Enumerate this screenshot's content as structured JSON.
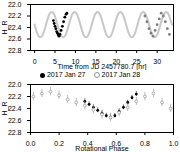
{
  "chart_data": [
    {
      "type": "scatter",
      "xlabel": "Time from JD 2457780.7 [hr]",
      "ylabel": "H_R",
      "xlim": [
        -1,
        34
      ],
      "ylim": [
        22.8,
        22.0
      ],
      "xticks": [
        0,
        5,
        10,
        15,
        20,
        25,
        30
      ],
      "yticks": [
        {
          "value": 22.0,
          "label": "22.0"
        },
        22.2,
        22.4,
        22.6,
        {
          "value": 22.8,
          "label": "22.8"
        }
      ],
      "series": [
        {
          "type": "line",
          "color": "#c8c8c8",
          "x": [
            0,
            0.7,
            1.4,
            2.1,
            2.8,
            3.5,
            4.2,
            4.9,
            5.6,
            6.3,
            7.0,
            7.7,
            8.4,
            9.1,
            9.8,
            10.5,
            11.2,
            11.9,
            12.6,
            13.3,
            14.0,
            14.7,
            15.4,
            16.1,
            16.8,
            17.5,
            18.2,
            18.9,
            19.6,
            20.3,
            21.0,
            21.7,
            22.4,
            23.1,
            23.8,
            24.5,
            25.2,
            25.9,
            26.6,
            27.3,
            28.0,
            28.7,
            29.4,
            30.1,
            30.8,
            31.5,
            32.2,
            32.9,
            33.6
          ],
          "values": [
            22.35,
            22.51,
            22.57,
            22.51,
            22.35,
            22.19,
            22.13,
            22.19,
            22.35,
            22.51,
            22.57,
            22.51,
            22.35,
            22.19,
            22.13,
            22.19,
            22.35,
            22.51,
            22.57,
            22.51,
            22.35,
            22.19,
            22.13,
            22.19,
            22.35,
            22.51,
            22.57,
            22.51,
            22.35,
            22.19,
            22.13,
            22.19,
            22.35,
            22.51,
            22.57,
            22.51,
            22.35,
            22.19,
            22.13,
            22.19,
            22.35,
            22.51,
            22.57,
            22.51,
            22.35,
            22.19,
            22.13,
            22.19,
            22.35
          ]
        },
        {
          "type": "scatter",
          "color": "#000000",
          "marker": "filled",
          "x": [
            4.6,
            4.8,
            5.0,
            5.2,
            5.4,
            5.6,
            5.8,
            6.0,
            6.2,
            6.5,
            6.8,
            7.1,
            7.4,
            7.7,
            7.9
          ],
          "values": [
            22.28,
            22.33,
            22.38,
            22.42,
            22.47,
            22.5,
            22.53,
            22.55,
            22.52,
            22.45,
            22.38,
            22.3,
            22.22,
            22.17,
            22.15
          ]
        },
        {
          "type": "scatter",
          "color": "#808080",
          "marker": "filled",
          "x": [
            27.0,
            27.5,
            28.0,
            28.5,
            29.0,
            29.5,
            30.0,
            30.5,
            31.0,
            31.5,
            32.0,
            32.5,
            33.0
          ],
          "values": [
            22.2,
            22.3,
            22.42,
            22.5,
            22.55,
            22.45,
            22.35,
            22.25,
            22.15,
            22.2,
            22.3,
            22.42,
            22.52
          ]
        }
      ]
    },
    {
      "type": "scatter",
      "xlabel": "Rotational Phase",
      "ylabel": "H_R",
      "xlim": [
        0,
        1
      ],
      "ylim": [
        22.8,
        22.0
      ],
      "xticks": [
        {
          "value": 0,
          "label": "0.0"
        },
        0.2,
        0.4,
        0.6,
        0.8,
        {
          "value": 1,
          "label": "1.0"
        }
      ],
      "yticks": [
        {
          "value": 22.0,
          "label": "22.0"
        },
        22.2,
        22.4,
        22.6,
        {
          "value": 22.8,
          "label": "22.8"
        }
      ],
      "legend": "top",
      "series": [
        {
          "name": "2017 Jan 27",
          "color": "#000000",
          "marker": "filled",
          "x": [
            0.38,
            0.41,
            0.44,
            0.47,
            0.5,
            0.53,
            0.56,
            0.59,
            0.62,
            0.65,
            0.68,
            0.71,
            0.74
          ],
          "values": [
            22.28,
            22.33,
            22.38,
            22.43,
            22.48,
            22.52,
            22.55,
            22.52,
            22.45,
            22.38,
            22.3,
            22.22,
            22.16
          ],
          "errors": [
            0.04,
            0.04,
            0.04,
            0.04,
            0.04,
            0.04,
            0.04,
            0.04,
            0.04,
            0.04,
            0.04,
            0.04,
            0.04
          ]
        },
        {
          "name": "2017 Jan 28",
          "color": "#909090",
          "marker": "open",
          "x": [
            0.02,
            0.08,
            0.14,
            0.2,
            0.26,
            0.32,
            0.38,
            0.44,
            0.5,
            0.56,
            0.62,
            0.68,
            0.74,
            0.8,
            0.86,
            0.92,
            0.98
          ],
          "values": [
            22.2,
            22.15,
            22.12,
            22.18,
            22.25,
            22.3,
            22.35,
            22.42,
            22.5,
            22.55,
            22.47,
            22.38,
            22.28,
            22.2,
            22.15,
            22.3,
            22.4
          ],
          "errors": [
            0.07,
            0.07,
            0.07,
            0.07,
            0.07,
            0.07,
            0.07,
            0.07,
            0.07,
            0.07,
            0.07,
            0.07,
            0.07,
            0.07,
            0.07,
            0.07,
            0.07
          ]
        }
      ]
    }
  ]
}
